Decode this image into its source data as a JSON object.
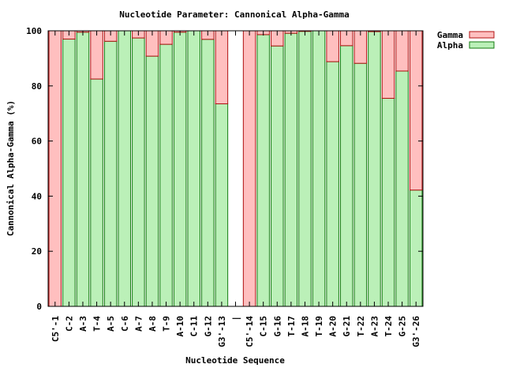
{
  "chart_data": {
    "type": "bar",
    "stacked": true,
    "title": "Nucleotide Parameter: Cannonical Alpha-Gamma",
    "xlabel": "Nucleotide Sequence",
    "ylabel": "Cannonical Alpha-Gamma (%)",
    "ylim": [
      0,
      100
    ],
    "yticks": [
      0,
      20,
      40,
      60,
      80,
      100
    ],
    "legend_position": "top-right, outside plot",
    "categories": [
      "C5'-1",
      "C-2",
      "A-3",
      "T-4",
      "A-5",
      "C-6",
      "A-7",
      "A-8",
      "T-9",
      "A-10",
      "C-11",
      "G-12",
      "G3'-13",
      "|",
      "C5'-14",
      "C-15",
      "G-16",
      "T-17",
      "A-18",
      "T-19",
      "A-20",
      "G-21",
      "T-22",
      "A-23",
      "T-24",
      "G-25",
      "G3'-26"
    ],
    "series": [
      {
        "name": "Alpha",
        "color": "#bbf0b8",
        "edge": "#127a0e",
        "values": [
          0,
          97,
          99.5,
          82.5,
          96.2,
          100,
          97.4,
          90.8,
          95.1,
          99.5,
          100,
          96.9,
          73.5,
          null,
          0,
          98.6,
          94.5,
          99.1,
          99.8,
          100,
          88.8,
          94.6,
          88.2,
          99.7,
          75.5,
          85.4,
          42.2
        ]
      },
      {
        "name": "Gamma",
        "color": "#ffbfbf",
        "edge": "#b01010",
        "values": [
          100,
          3,
          0.5,
          17.5,
          3.8,
          0,
          2.6,
          9.2,
          4.9,
          0.5,
          0,
          3.1,
          26.5,
          null,
          100,
          1.4,
          5.5,
          0.9,
          0.2,
          0,
          11.2,
          5.4,
          11.8,
          0.3,
          24.5,
          14.6,
          57.8
        ]
      }
    ]
  }
}
